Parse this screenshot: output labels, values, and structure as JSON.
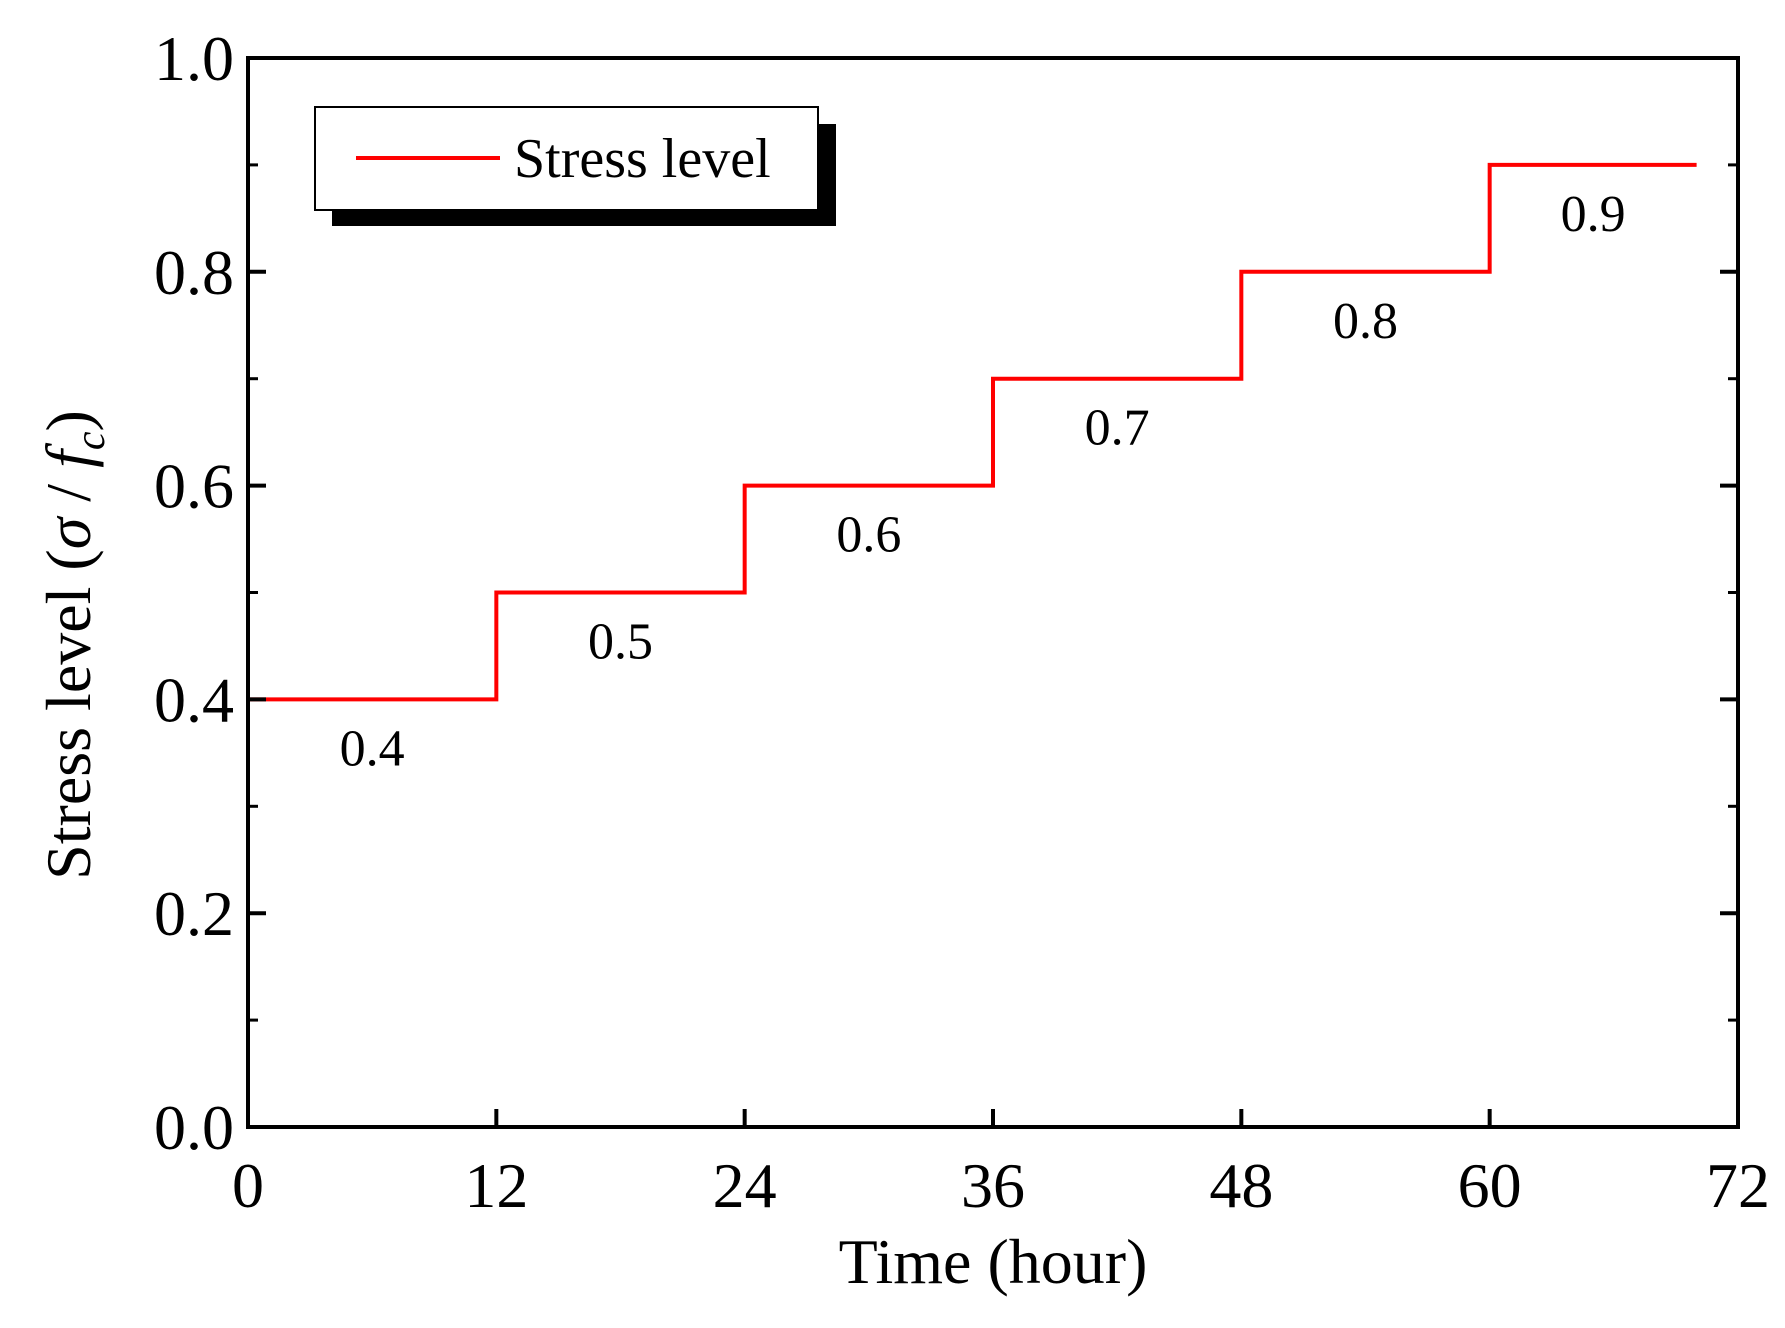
{
  "chart_data": {
    "type": "line",
    "title": "",
    "xlabel": "Time (hour)",
    "ylabel": {
      "prefix": "Stress level (",
      "sigma": "σ",
      "slash": " / ",
      "f": "f",
      "sub": "c",
      "suffix": ")"
    },
    "xlim": [
      0,
      72
    ],
    "ylim": [
      0.0,
      1.0
    ],
    "x_ticks": [
      0,
      12,
      24,
      36,
      48,
      60,
      72
    ],
    "x_tick_labels": [
      "0",
      "12",
      "24",
      "36",
      "48",
      "60",
      "72"
    ],
    "y_ticks": [
      0.0,
      0.2,
      0.4,
      0.6,
      0.8,
      1.0
    ],
    "y_tick_labels": [
      "0.0",
      "0.2",
      "0.4",
      "0.6",
      "0.8",
      "1.0"
    ],
    "y_minor_ticks": [
      0.1,
      0.3,
      0.5,
      0.7,
      0.9
    ],
    "grid": false,
    "legend": {
      "position": "top-left",
      "entries": [
        "Stress level"
      ]
    },
    "series": [
      {
        "name": "Stress level",
        "color": "#ff0000",
        "x": [
          0,
          0,
          12,
          12,
          24,
          24,
          36,
          36,
          48,
          48,
          60,
          60,
          70
        ],
        "y": [
          0.0,
          0.4,
          0.4,
          0.5,
          0.5,
          0.6,
          0.6,
          0.7,
          0.7,
          0.8,
          0.8,
          0.9,
          0.9
        ]
      }
    ],
    "annotations": [
      {
        "text": "0.4",
        "x": 6,
        "y": 0.4
      },
      {
        "text": "0.5",
        "x": 18,
        "y": 0.5
      },
      {
        "text": "0.6",
        "x": 30,
        "y": 0.6
      },
      {
        "text": "0.7",
        "x": 42,
        "y": 0.7
      },
      {
        "text": "0.8",
        "x": 54,
        "y": 0.8
      },
      {
        "text": "0.9",
        "x": 65,
        "y": 0.9
      }
    ]
  }
}
